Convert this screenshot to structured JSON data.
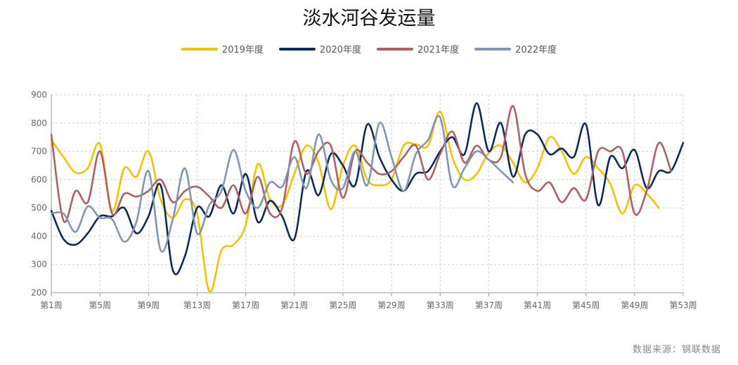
{
  "title": "淡水河谷发运量",
  "source": "数据来源：钢联数据",
  "chart_data": {
    "type": "line",
    "title": "淡水河谷发运量",
    "xlabel": "",
    "ylabel": "",
    "ylim": [
      200,
      900
    ],
    "yticks": [
      200,
      300,
      400,
      500,
      600,
      700,
      800,
      900
    ],
    "xlim": [
      1,
      53
    ],
    "xticks": [
      1,
      5,
      9,
      13,
      17,
      21,
      25,
      29,
      33,
      37,
      41,
      45,
      49,
      53
    ],
    "xtick_labels": [
      "第1周",
      "第5周",
      "第9周",
      "第13周",
      "第17周",
      "第21周",
      "第25周",
      "第29周",
      "第33周",
      "第37周",
      "第41周",
      "第45周",
      "第49周",
      "第53周"
    ],
    "grid": true,
    "legend_position": "top",
    "series": [
      {
        "name": "2019年度",
        "color": "#F5C100",
        "values": [
          740,
          680,
          625,
          640,
          725,
          490,
          640,
          610,
          700,
          530,
          465,
          530,
          480,
          205,
          350,
          370,
          440,
          655,
          530,
          510,
          620,
          720,
          660,
          495,
          650,
          720,
          600,
          580,
          600,
          720,
          725,
          720,
          840,
          680,
          600,
          620,
          695,
          720,
          660,
          590,
          640,
          750,
          700,
          620,
          680,
          640,
          585,
          480,
          580,
          550,
          500
        ]
      },
      {
        "name": "2020年度",
        "color": "#0D2A5C",
        "values": [
          490,
          390,
          370,
          410,
          470,
          470,
          500,
          410,
          470,
          580,
          280,
          330,
          500,
          470,
          580,
          480,
          620,
          450,
          525,
          470,
          390,
          630,
          545,
          690,
          650,
          580,
          795,
          680,
          600,
          560,
          620,
          630,
          700,
          750,
          690,
          870,
          700,
          800,
          610,
          760,
          760,
          690,
          710,
          680,
          795,
          510,
          680,
          640,
          705,
          570,
          630,
          630,
          730
        ]
      },
      {
        "name": "2021年度",
        "color": "#B06060",
        "values": [
          760,
          455,
          560,
          520,
          700,
          480,
          550,
          540,
          560,
          600,
          520,
          560,
          575,
          540,
          500,
          580,
          480,
          610,
          480,
          500,
          735,
          620,
          700,
          720,
          535,
          700,
          660,
          620,
          630,
          680,
          720,
          600,
          690,
          770,
          660,
          720,
          670,
          680,
          860,
          620,
          560,
          590,
          520,
          570,
          530,
          700,
          700,
          700,
          480,
          560,
          730,
          630
        ]
      },
      {
        "name": "2022年度",
        "color": "#8096B2",
        "values": [
          480,
          480,
          415,
          505,
          465,
          460,
          380,
          450,
          630,
          350,
          460,
          640,
          410,
          510,
          560,
          705,
          560,
          500,
          590,
          575,
          680,
          570,
          760,
          600,
          570,
          700,
          580,
          800,
          680,
          560,
          690,
          740,
          820,
          580,
          640,
          700,
          670,
          630,
          590
        ]
      }
    ]
  }
}
